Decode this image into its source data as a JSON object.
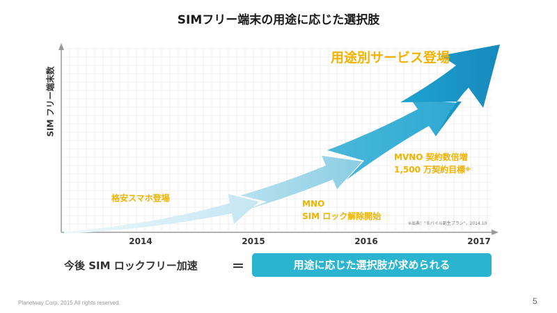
{
  "title": "SIMフリー端末の用途に応じた選択肢",
  "y_axis_label": "SIM フリー端末数",
  "x_ticks": [
    "2014",
    "2015",
    "2016",
    "2017"
  ],
  "stages": [
    {
      "label": "格安スマホ登場"
    },
    {
      "line1": "MNO",
      "line2": "SIM ロック解除開始"
    },
    {
      "line1": "MVNO 契約数倍増",
      "line2": "1,500 万契約目標",
      "mark": "※"
    },
    {
      "label": "用途別サービス登場"
    }
  ],
  "source_note": "※出典：\"モバイル創生プラン\"，2014.10",
  "equation": {
    "left": "今後 SIM ロックフリー加速",
    "sign": "＝",
    "right": "用途に応じた選択肢が求められる"
  },
  "footer": "Planetway Corp. 2015 All rights reserved.",
  "page_number": "5",
  "colors": {
    "stage1": "#cde9f3",
    "stage2": "#8fd0e4",
    "stage3": "#3eb3d6",
    "stage4": "#1b97c6",
    "label_accent": "#f2b200",
    "equation_box": "#2ab4cf",
    "grid": "#e3e3e3"
  }
}
